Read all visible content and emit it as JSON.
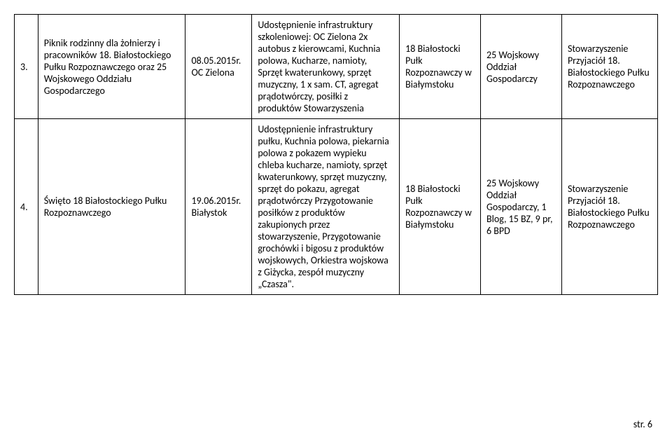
{
  "rows": [
    {
      "num": "3.",
      "desc": "Piknik rodzinny dla żołnierzy i pracowników 18. Białostockiego Pułku Rozpoznawczego oraz 25 Wojskowego Oddziału Gospodarczego",
      "date": "08.05.2015r. OC Zielona",
      "details": "Udostępnienie infrastruktury szkoleniowej: OC Zielona 2x autobus z kierowcami, Kuchnia polowa, Kucharze, namioty, Sprzęt kwaterunkowy, sprzęt muzyczny, 1 x sam. CT, agregat prądotwórczy, posiłki z produktów Stowarzyszenia",
      "unit": "18 Białostocki Pułk Rozpoznawczy w Białymstoku",
      "org": "25 Wojskowy Oddział Gospodarczy",
      "assoc": "Stowarzyszenie Przyjaciół 18. Białostockiego Pułku Rozpoznawczego"
    },
    {
      "num": "4.",
      "desc": "Święto 18 Białostockiego Pułku Rozpoznawczego",
      "date": "19.06.2015r. Białystok",
      "details": "Udostępnienie infrastruktury pułku, Kuchnia polowa, piekarnia polowa z pokazem wypieku chleba kucharze, namioty, sprzęt kwaterunkowy, sprzęt muzyczny, sprzęt do pokazu, agregat prądotwórczy Przygotowanie posiłków z produktów zakupionych przez stowarzyszenie, Przygotowanie grochówki i bigosu z produktów wojskowych, Orkiestra wojskowa z Giżycka, zespół muzyczny „Czasza\".",
      "unit": "18 Białostocki Pułk Rozpoznawczy w Białymstoku",
      "org": "25 Wojskowy Oddział Gospodarczy, 1 Blog, 15 BZ, 9 pr, 6 BPD",
      "assoc": "Stowarzyszenie Przyjaciół 18. Białostockiego Pułku Rozpoznawczego"
    }
  ],
  "footer": "str. 6"
}
